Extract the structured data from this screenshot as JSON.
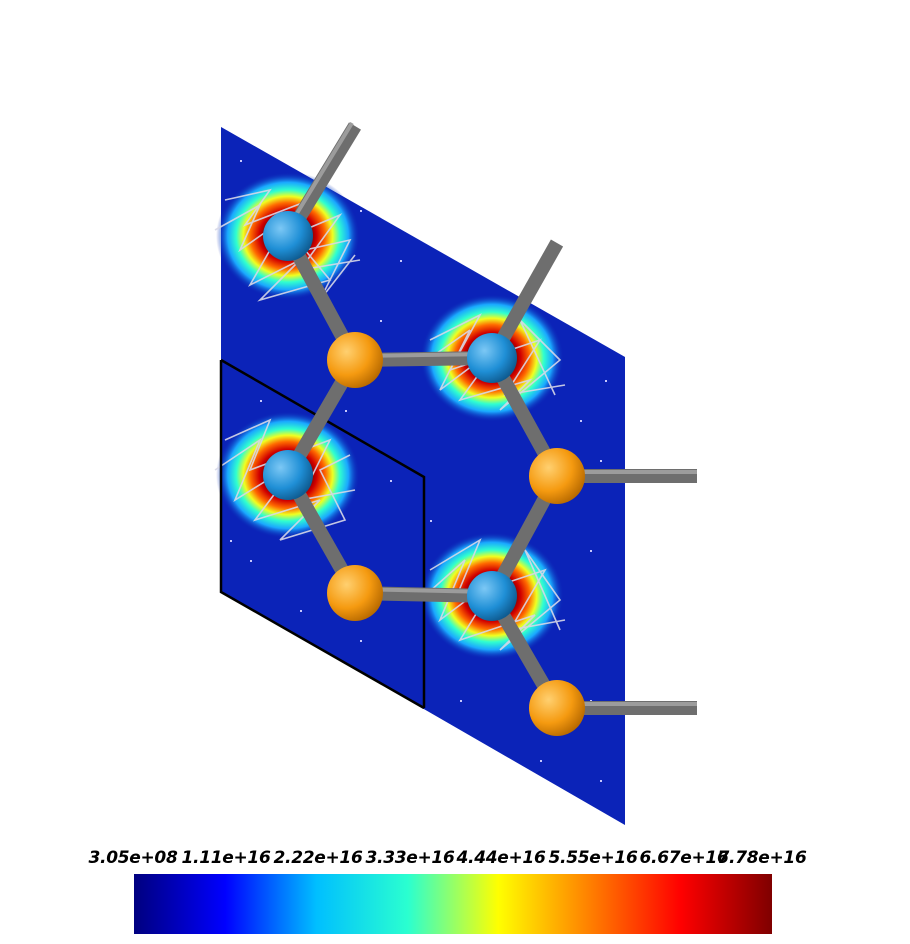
{
  "colorbar": {
    "labels": [
      "3.05e+08",
      "1.11e+16",
      "2.22e+16",
      "3.33e+16",
      "4.44e+16",
      "5.55e+16",
      "6.67e+16",
      "7.78e+16"
    ],
    "colormap": "jet",
    "stops": [
      "#00007f",
      "#0000ff",
      "#00bfff",
      "#2affd0",
      "#ffff00",
      "#ff8000",
      "#ff0000",
      "#7f0000"
    ]
  },
  "scene": {
    "background": "#ffffff",
    "field_color": "#0a1fb0",
    "vector_color": "#d8d8e8",
    "atoms_blue_color": "#1f8fd6",
    "atoms_orange_color": "#f59a10",
    "bond_color": "#6e6e6e"
  }
}
